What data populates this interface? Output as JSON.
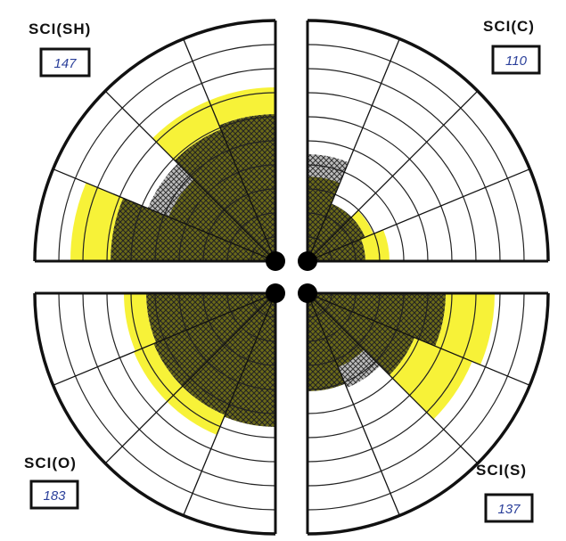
{
  "colors": {
    "paper": "#ffffff",
    "ink": "#111111",
    "highlight": "#f7f238",
    "fill_dark": "#6b6a18",
    "fill_gray": "#b8b8b8",
    "value_ink": "#2a3f9a"
  },
  "quadrants": [
    {
      "id": "top-left",
      "label": "SCI(SH)",
      "value": "147"
    },
    {
      "id": "top-right",
      "label": "SCI(C)",
      "value": "110"
    },
    {
      "id": "bottom-left",
      "label": "SCI(O)",
      "value": "183"
    },
    {
      "id": "bottom-right",
      "label": "SCI(S)",
      "value": "137"
    }
  ]
}
